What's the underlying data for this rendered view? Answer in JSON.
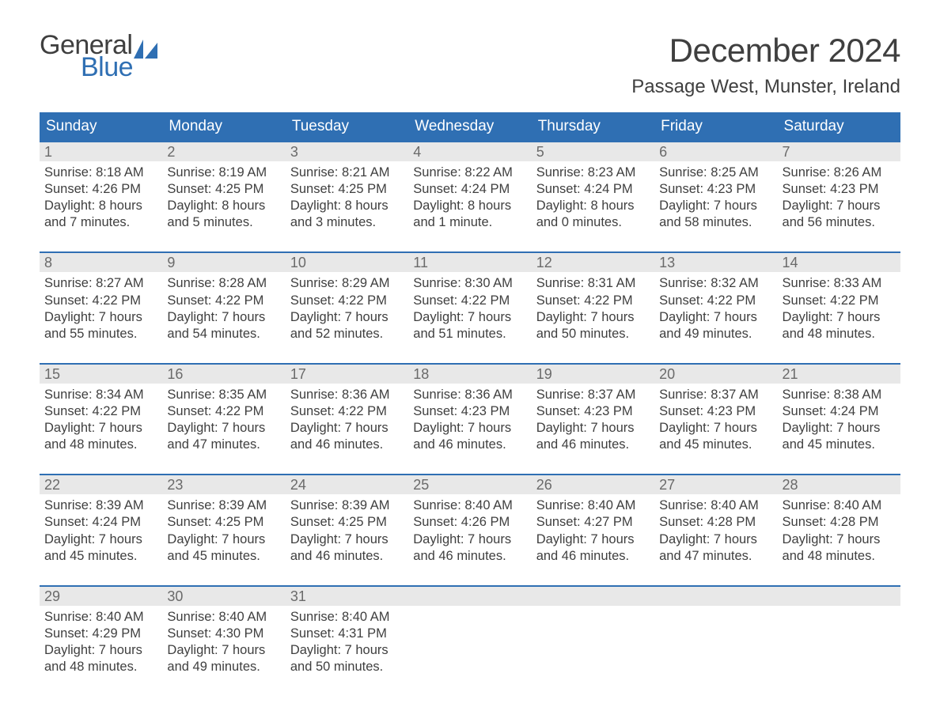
{
  "brand": {
    "top": "General",
    "bottom": "Blue",
    "text_color": "#3f3f3f",
    "accent_color": "#2f6fb3"
  },
  "title": "December 2024",
  "location": "Passage West, Munster, Ireland",
  "colors": {
    "header_bg": "#2f6fb3",
    "header_text": "#ffffff",
    "daynum_bg": "#e8e8e8",
    "daynum_text": "#6a6a6a",
    "body_text": "#3f3f3f",
    "page_bg": "#ffffff",
    "week_border": "#2f6fb3"
  },
  "typography": {
    "month_title_pt": 42,
    "location_pt": 24,
    "day_header_pt": 19,
    "daynum_pt": 18,
    "body_pt": 16.5,
    "logo_pt": 34
  },
  "day_headers": [
    "Sunday",
    "Monday",
    "Tuesday",
    "Wednesday",
    "Thursday",
    "Friday",
    "Saturday"
  ],
  "weeks": [
    [
      {
        "n": "1",
        "sunrise": "Sunrise: 8:18 AM",
        "sunset": "Sunset: 4:26 PM",
        "dl1": "Daylight: 8 hours",
        "dl2": "and 7 minutes."
      },
      {
        "n": "2",
        "sunrise": "Sunrise: 8:19 AM",
        "sunset": "Sunset: 4:25 PM",
        "dl1": "Daylight: 8 hours",
        "dl2": "and 5 minutes."
      },
      {
        "n": "3",
        "sunrise": "Sunrise: 8:21 AM",
        "sunset": "Sunset: 4:25 PM",
        "dl1": "Daylight: 8 hours",
        "dl2": "and 3 minutes."
      },
      {
        "n": "4",
        "sunrise": "Sunrise: 8:22 AM",
        "sunset": "Sunset: 4:24 PM",
        "dl1": "Daylight: 8 hours",
        "dl2": "and 1 minute."
      },
      {
        "n": "5",
        "sunrise": "Sunrise: 8:23 AM",
        "sunset": "Sunset: 4:24 PM",
        "dl1": "Daylight: 8 hours",
        "dl2": "and 0 minutes."
      },
      {
        "n": "6",
        "sunrise": "Sunrise: 8:25 AM",
        "sunset": "Sunset: 4:23 PM",
        "dl1": "Daylight: 7 hours",
        "dl2": "and 58 minutes."
      },
      {
        "n": "7",
        "sunrise": "Sunrise: 8:26 AM",
        "sunset": "Sunset: 4:23 PM",
        "dl1": "Daylight: 7 hours",
        "dl2": "and 56 minutes."
      }
    ],
    [
      {
        "n": "8",
        "sunrise": "Sunrise: 8:27 AM",
        "sunset": "Sunset: 4:22 PM",
        "dl1": "Daylight: 7 hours",
        "dl2": "and 55 minutes."
      },
      {
        "n": "9",
        "sunrise": "Sunrise: 8:28 AM",
        "sunset": "Sunset: 4:22 PM",
        "dl1": "Daylight: 7 hours",
        "dl2": "and 54 minutes."
      },
      {
        "n": "10",
        "sunrise": "Sunrise: 8:29 AM",
        "sunset": "Sunset: 4:22 PM",
        "dl1": "Daylight: 7 hours",
        "dl2": "and 52 minutes."
      },
      {
        "n": "11",
        "sunrise": "Sunrise: 8:30 AM",
        "sunset": "Sunset: 4:22 PM",
        "dl1": "Daylight: 7 hours",
        "dl2": "and 51 minutes."
      },
      {
        "n": "12",
        "sunrise": "Sunrise: 8:31 AM",
        "sunset": "Sunset: 4:22 PM",
        "dl1": "Daylight: 7 hours",
        "dl2": "and 50 minutes."
      },
      {
        "n": "13",
        "sunrise": "Sunrise: 8:32 AM",
        "sunset": "Sunset: 4:22 PM",
        "dl1": "Daylight: 7 hours",
        "dl2": "and 49 minutes."
      },
      {
        "n": "14",
        "sunrise": "Sunrise: 8:33 AM",
        "sunset": "Sunset: 4:22 PM",
        "dl1": "Daylight: 7 hours",
        "dl2": "and 48 minutes."
      }
    ],
    [
      {
        "n": "15",
        "sunrise": "Sunrise: 8:34 AM",
        "sunset": "Sunset: 4:22 PM",
        "dl1": "Daylight: 7 hours",
        "dl2": "and 48 minutes."
      },
      {
        "n": "16",
        "sunrise": "Sunrise: 8:35 AM",
        "sunset": "Sunset: 4:22 PM",
        "dl1": "Daylight: 7 hours",
        "dl2": "and 47 minutes."
      },
      {
        "n": "17",
        "sunrise": "Sunrise: 8:36 AM",
        "sunset": "Sunset: 4:22 PM",
        "dl1": "Daylight: 7 hours",
        "dl2": "and 46 minutes."
      },
      {
        "n": "18",
        "sunrise": "Sunrise: 8:36 AM",
        "sunset": "Sunset: 4:23 PM",
        "dl1": "Daylight: 7 hours",
        "dl2": "and 46 minutes."
      },
      {
        "n": "19",
        "sunrise": "Sunrise: 8:37 AM",
        "sunset": "Sunset: 4:23 PM",
        "dl1": "Daylight: 7 hours",
        "dl2": "and 46 minutes."
      },
      {
        "n": "20",
        "sunrise": "Sunrise: 8:37 AM",
        "sunset": "Sunset: 4:23 PM",
        "dl1": "Daylight: 7 hours",
        "dl2": "and 45 minutes."
      },
      {
        "n": "21",
        "sunrise": "Sunrise: 8:38 AM",
        "sunset": "Sunset: 4:24 PM",
        "dl1": "Daylight: 7 hours",
        "dl2": "and 45 minutes."
      }
    ],
    [
      {
        "n": "22",
        "sunrise": "Sunrise: 8:39 AM",
        "sunset": "Sunset: 4:24 PM",
        "dl1": "Daylight: 7 hours",
        "dl2": "and 45 minutes."
      },
      {
        "n": "23",
        "sunrise": "Sunrise: 8:39 AM",
        "sunset": "Sunset: 4:25 PM",
        "dl1": "Daylight: 7 hours",
        "dl2": "and 45 minutes."
      },
      {
        "n": "24",
        "sunrise": "Sunrise: 8:39 AM",
        "sunset": "Sunset: 4:25 PM",
        "dl1": "Daylight: 7 hours",
        "dl2": "and 46 minutes."
      },
      {
        "n": "25",
        "sunrise": "Sunrise: 8:40 AM",
        "sunset": "Sunset: 4:26 PM",
        "dl1": "Daylight: 7 hours",
        "dl2": "and 46 minutes."
      },
      {
        "n": "26",
        "sunrise": "Sunrise: 8:40 AM",
        "sunset": "Sunset: 4:27 PM",
        "dl1": "Daylight: 7 hours",
        "dl2": "and 46 minutes."
      },
      {
        "n": "27",
        "sunrise": "Sunrise: 8:40 AM",
        "sunset": "Sunset: 4:28 PM",
        "dl1": "Daylight: 7 hours",
        "dl2": "and 47 minutes."
      },
      {
        "n": "28",
        "sunrise": "Sunrise: 8:40 AM",
        "sunset": "Sunset: 4:28 PM",
        "dl1": "Daylight: 7 hours",
        "dl2": "and 48 minutes."
      }
    ],
    [
      {
        "n": "29",
        "sunrise": "Sunrise: 8:40 AM",
        "sunset": "Sunset: 4:29 PM",
        "dl1": "Daylight: 7 hours",
        "dl2": "and 48 minutes."
      },
      {
        "n": "30",
        "sunrise": "Sunrise: 8:40 AM",
        "sunset": "Sunset: 4:30 PM",
        "dl1": "Daylight: 7 hours",
        "dl2": "and 49 minutes."
      },
      {
        "n": "31",
        "sunrise": "Sunrise: 8:40 AM",
        "sunset": "Sunset: 4:31 PM",
        "dl1": "Daylight: 7 hours",
        "dl2": "and 50 minutes."
      },
      {
        "empty": true
      },
      {
        "empty": true
      },
      {
        "empty": true
      },
      {
        "empty": true
      }
    ]
  ]
}
